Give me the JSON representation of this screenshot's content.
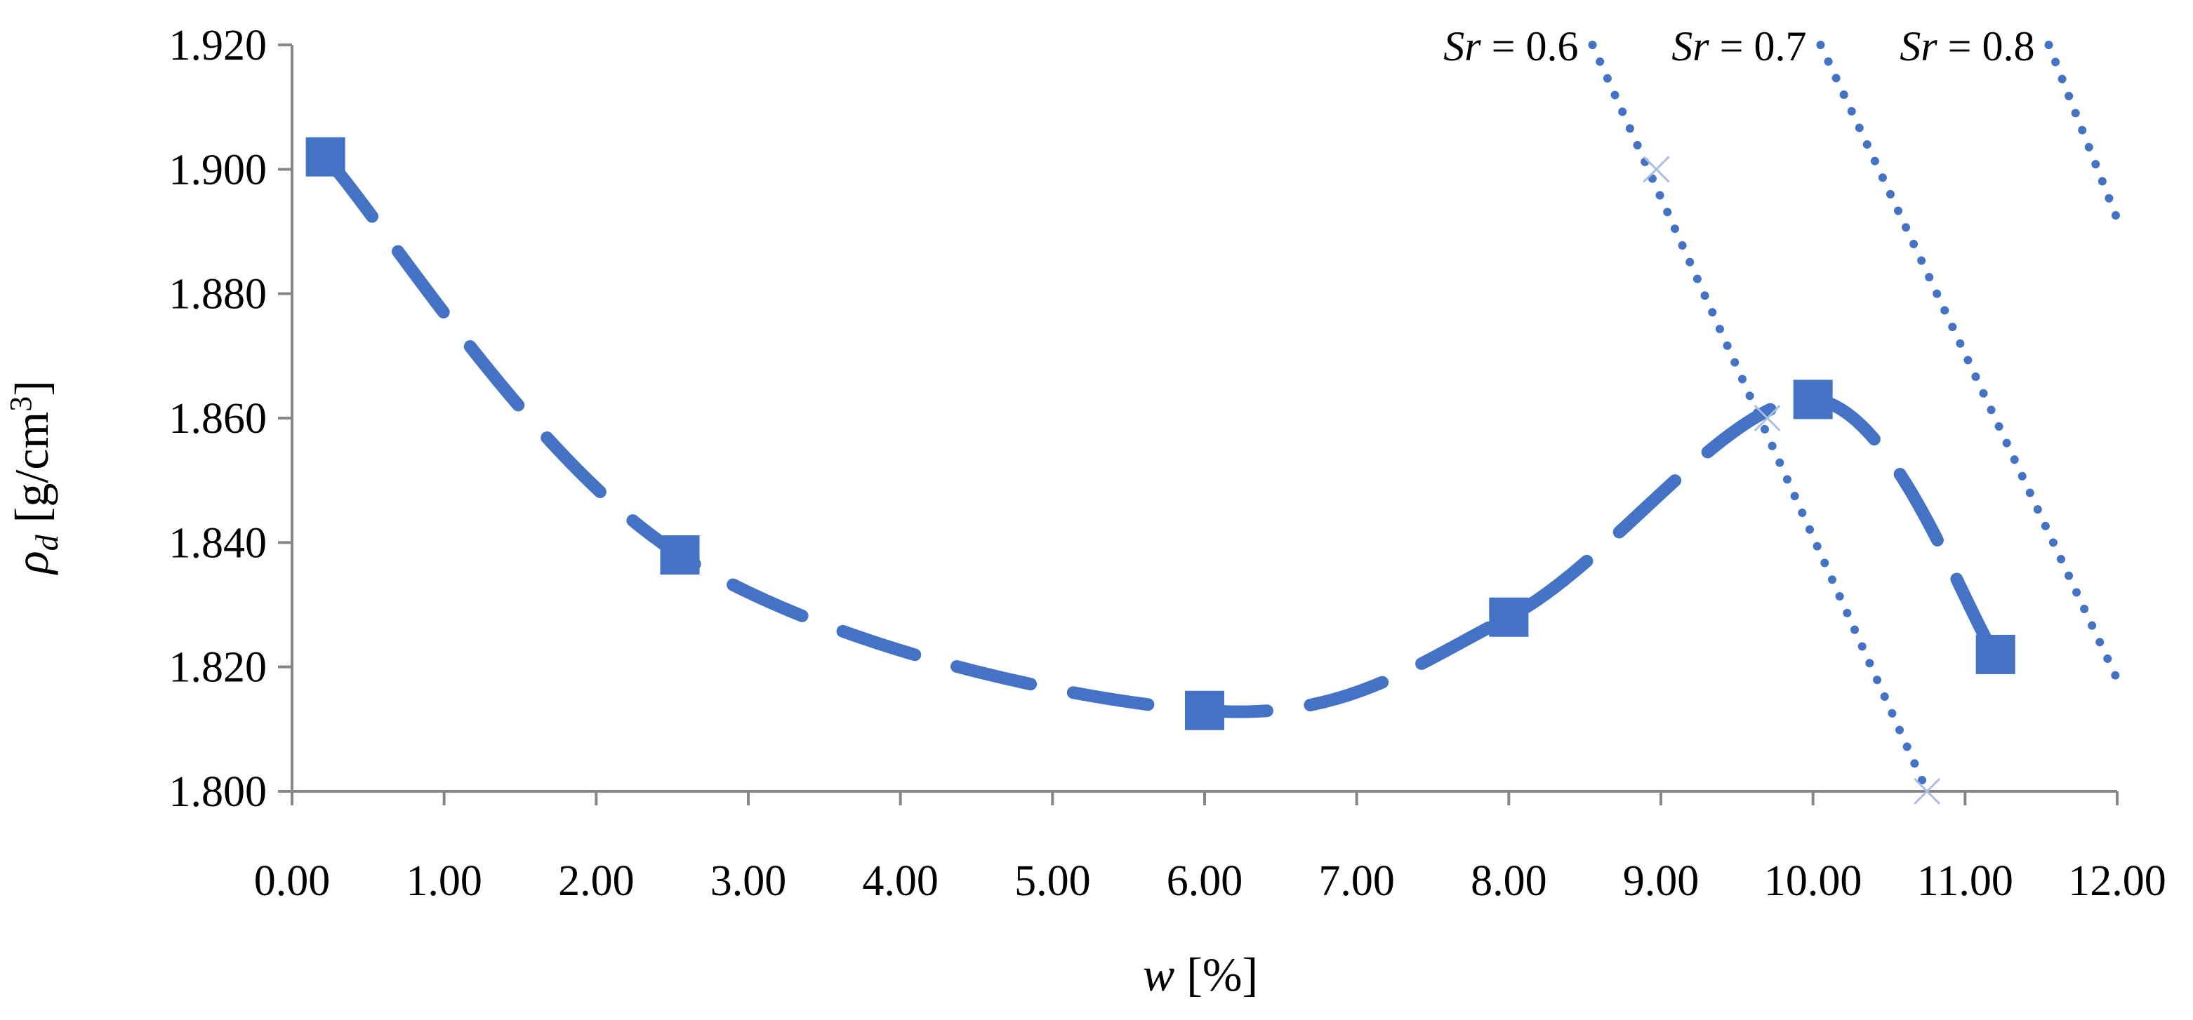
{
  "chart_data": {
    "type": "line",
    "xlim": [
      0,
      12
    ],
    "ylim": [
      1.8,
      1.92
    ],
    "grid": false,
    "x_ticks": [
      0,
      1,
      2,
      3,
      4,
      5,
      6,
      7,
      8,
      9,
      10,
      11,
      12
    ],
    "y_ticks": [
      1.8,
      1.82,
      1.84,
      1.86,
      1.88,
      1.9,
      1.92
    ],
    "x_tick_labels": [
      "0.00",
      "1.00",
      "2.00",
      "3.00",
      "4.00",
      "5.00",
      "6.00",
      "7.00",
      "8.00",
      "9.00",
      "10.00",
      "11.00",
      "12.00"
    ],
    "y_tick_labels": [
      "1.800",
      "1.820",
      "1.840",
      "1.860",
      "1.880",
      "1.900",
      "1.920"
    ],
    "xlabel": {
      "var": "w",
      "rest": " [%]"
    },
    "ylabel": {
      "symbol": "ρ",
      "subscript": "d",
      "unit_open": " [g/cm",
      "unit_sup": "3",
      "unit_close": "]"
    },
    "series": [
      {
        "style": "dashed-with-square-markers",
        "color": "#4472C4",
        "x": [
          0.22,
          2.55,
          6.0,
          8.0,
          10.0,
          11.2
        ],
        "y": [
          1.902,
          1.838,
          1.813,
          1.828,
          1.863,
          1.822
        ]
      },
      {
        "style": "dotted",
        "color": "#4472C4",
        "label_var": "Sr",
        "label_rest": " = 0.6",
        "x": [
          8.55,
          10.75
        ],
        "y": [
          1.92,
          1.8
        ],
        "markers": [
          {
            "x": 8.97,
            "y": 1.9
          },
          {
            "x": 9.7,
            "y": 1.86
          },
          {
            "x": 10.75,
            "y": 1.8
          }
        ]
      },
      {
        "style": "dotted",
        "color": "#4472C4",
        "label_var": "Sr",
        "label_rest": " = 0.7",
        "x": [
          10.05,
          12.0
        ],
        "y": [
          1.92,
          1.818
        ]
      },
      {
        "style": "dotted",
        "color": "#4472C4",
        "label_var": "Sr",
        "label_rest": " = 0.8",
        "x": [
          11.55,
          12.0
        ],
        "y": [
          1.92,
          1.892
        ]
      }
    ]
  }
}
